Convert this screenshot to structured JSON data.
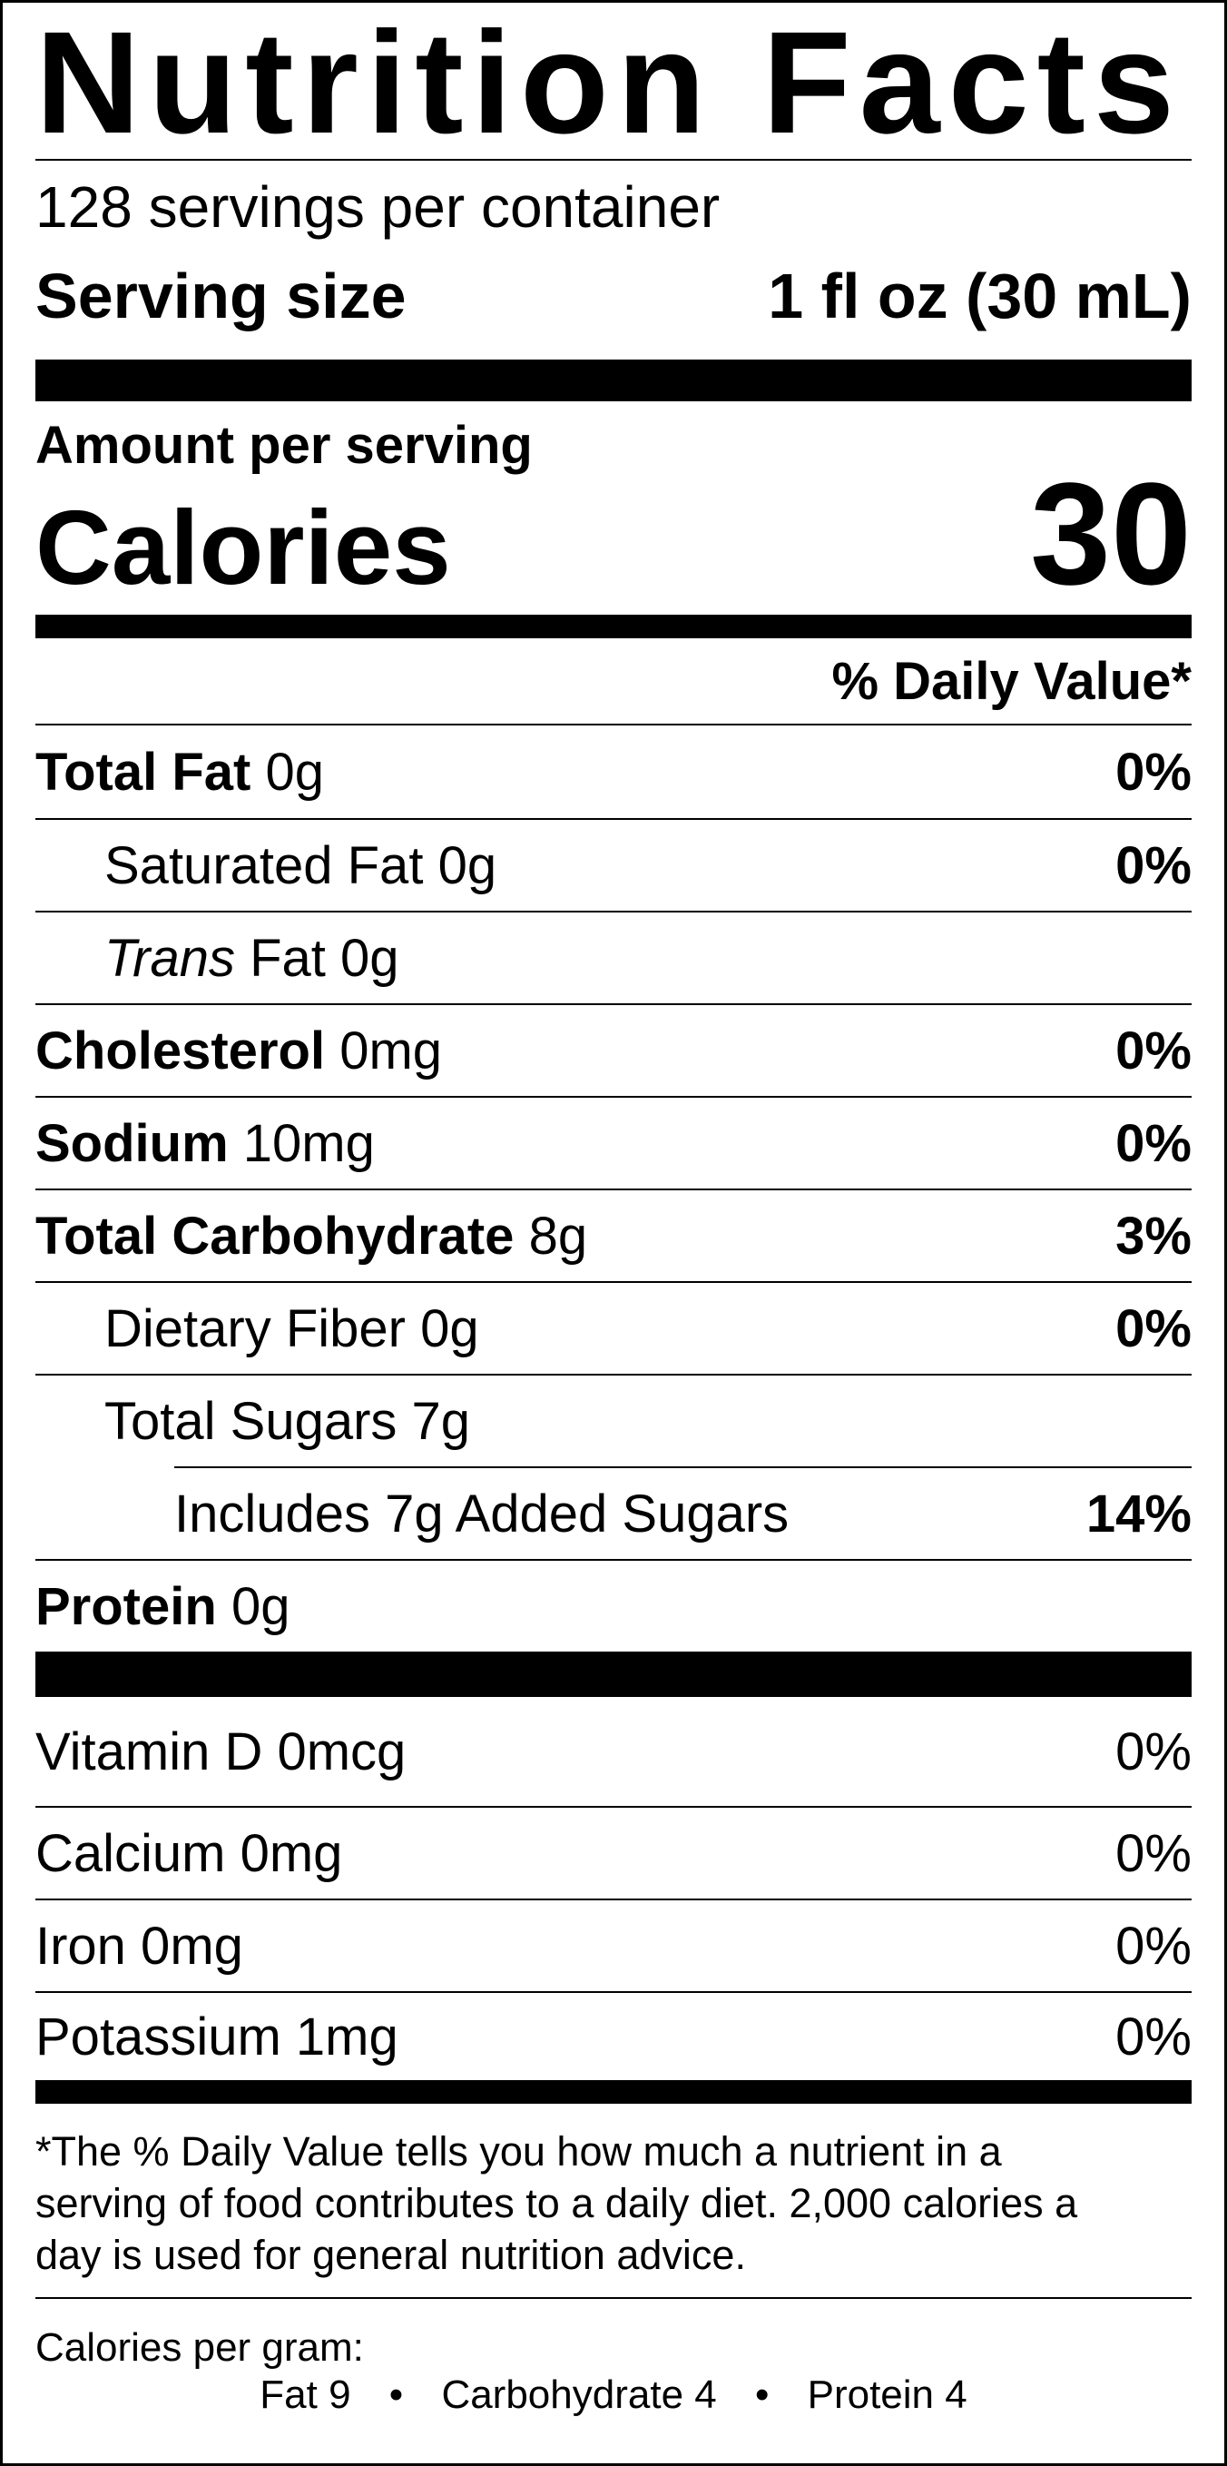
{
  "header": {
    "title": "Nutrition Facts",
    "servings": "128 servings per container",
    "serving_size_label": "Serving size",
    "serving_size_value": "1 fl oz (30 mL)"
  },
  "calories": {
    "amount_label": "Amount per serving",
    "label": "Calories",
    "value": "30"
  },
  "daily_value_header": "% Daily Value*",
  "nutrients": [
    {
      "name": "Total Fat",
      "amount": "0g",
      "dv": "0%"
    },
    {
      "name": "Saturated Fat",
      "amount": "0g",
      "dv": "0%"
    },
    {
      "name": "Trans",
      "amount": "Fat 0g"
    },
    {
      "name": "Cholesterol",
      "amount": "0mg",
      "dv": "0%"
    },
    {
      "name": "Sodium",
      "amount": "10mg",
      "dv": "0%"
    },
    {
      "name": "Total Carbohydrate",
      "amount": "8g",
      "dv": "3%"
    },
    {
      "name": "Dietary Fiber",
      "amount": "0g",
      "dv": "0%"
    },
    {
      "name": "Total Sugars",
      "amount": "7g"
    },
    {
      "name": "Includes 7g Added Sugars",
      "dv": "14%"
    },
    {
      "name": "Protein",
      "amount": "0g"
    }
  ],
  "vitamins": [
    {
      "name": "Vitamin D 0mcg",
      "dv": "0%"
    },
    {
      "name": "Calcium 0mg",
      "dv": "0%"
    },
    {
      "name": "Iron 0mg",
      "dv": "0%"
    },
    {
      "name": "Potassium 1mg",
      "dv": "0%"
    }
  ],
  "footnote": [
    "*The % Daily Value tells you how much a nutrient in a",
    "serving of food contributes to a daily diet. 2,000 calories a",
    "day is used for general nutrition advice."
  ],
  "calories_per_gram": {
    "label": "Calories per gram:",
    "items": [
      "Fat 9",
      "Carbohydrate 4",
      "Protein 4"
    ]
  }
}
